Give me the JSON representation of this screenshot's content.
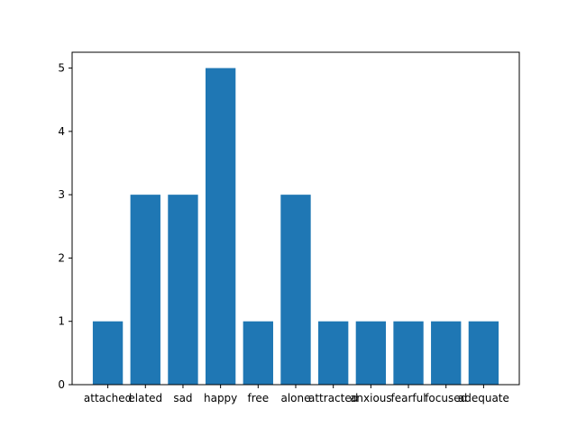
{
  "chart_data": {
    "type": "bar",
    "title": "",
    "xlabel": "",
    "ylabel": "",
    "categories": [
      "attached",
      "elated",
      "sad",
      "happy",
      "free",
      "alone",
      "attracted",
      "anxious",
      "fearful",
      "focused",
      "adequate"
    ],
    "values": [
      1,
      3,
      3,
      5,
      1,
      3,
      1,
      1,
      1,
      1,
      1
    ],
    "ylim": [
      0,
      5.25
    ],
    "yticks": [
      "0",
      "1",
      "2",
      "3",
      "4",
      "5"
    ],
    "grid": false,
    "legend": "none",
    "bar_color": "#1f77b4"
  }
}
